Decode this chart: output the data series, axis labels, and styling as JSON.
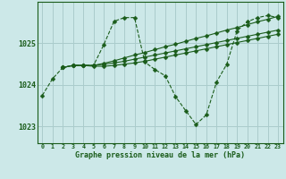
{
  "background_color": "#cce8e8",
  "grid_color": "#aacccc",
  "line_color": "#1a5c1a",
  "title": "Graphe pression niveau de la mer (hPa)",
  "ylabel_ticks": [
    1023,
    1024,
    1025
  ],
  "xlim": [
    -0.5,
    23.5
  ],
  "ylim": [
    1022.6,
    1026.0
  ],
  "series": [
    {
      "x": [
        0,
        1,
        2,
        3,
        4,
        5,
        6,
        7,
        8,
        9,
        10,
        11,
        12,
        13,
        14,
        15,
        16,
        17,
        18,
        19,
        20,
        21,
        22,
        23
      ],
      "y": [
        1023.75,
        1024.15,
        1024.42,
        1024.47,
        1024.47,
        1024.47,
        1024.97,
        1025.53,
        1025.62,
        1025.62,
        1024.55,
        1024.37,
        1024.22,
        1023.72,
        1023.38,
        1023.05,
        1023.28,
        1024.07,
        1024.5,
        1025.3,
        1025.52,
        1025.62,
        1025.67,
        1025.62
      ],
      "linestyle": "--",
      "marker": "D",
      "markersize": 2.5
    },
    {
      "x": [
        2,
        3,
        4,
        5,
        6,
        7,
        8,
        9,
        10,
        11,
        12,
        13,
        14,
        15,
        16,
        17,
        18,
        19,
        20,
        21,
        22,
        23
      ],
      "y": [
        1024.42,
        1024.47,
        1024.47,
        1024.47,
        1024.52,
        1024.58,
        1024.65,
        1024.72,
        1024.78,
        1024.85,
        1024.92,
        1024.98,
        1025.05,
        1025.12,
        1025.18,
        1025.25,
        1025.32,
        1025.38,
        1025.45,
        1025.52,
        1025.58,
        1025.65
      ],
      "linestyle": "-",
      "marker": "D",
      "markersize": 2.5
    },
    {
      "x": [
        2,
        3,
        4,
        5,
        6,
        7,
        8,
        9,
        10,
        11,
        12,
        13,
        14,
        15,
        16,
        17,
        18,
        19,
        20,
        21,
        22,
        23
      ],
      "y": [
        1024.42,
        1024.47,
        1024.47,
        1024.47,
        1024.5,
        1024.53,
        1024.57,
        1024.62,
        1024.67,
        1024.72,
        1024.77,
        1024.82,
        1024.87,
        1024.92,
        1024.97,
        1025.02,
        1025.07,
        1025.12,
        1025.17,
        1025.22,
        1025.27,
        1025.32
      ],
      "linestyle": "-",
      "marker": "D",
      "markersize": 2.5
    },
    {
      "x": [
        2,
        3,
        4,
        5,
        6,
        7,
        8,
        9,
        10,
        11,
        12,
        13,
        14,
        15,
        16,
        17,
        18,
        19,
        20,
        21,
        22,
        23
      ],
      "y": [
        1024.42,
        1024.47,
        1024.47,
        1024.45,
        1024.45,
        1024.47,
        1024.5,
        1024.53,
        1024.57,
        1024.62,
        1024.67,
        1024.72,
        1024.77,
        1024.82,
        1024.87,
        1024.92,
        1024.97,
        1025.02,
        1025.07,
        1025.12,
        1025.17,
        1025.22
      ],
      "linestyle": "-",
      "marker": "D",
      "markersize": 2.5
    }
  ]
}
